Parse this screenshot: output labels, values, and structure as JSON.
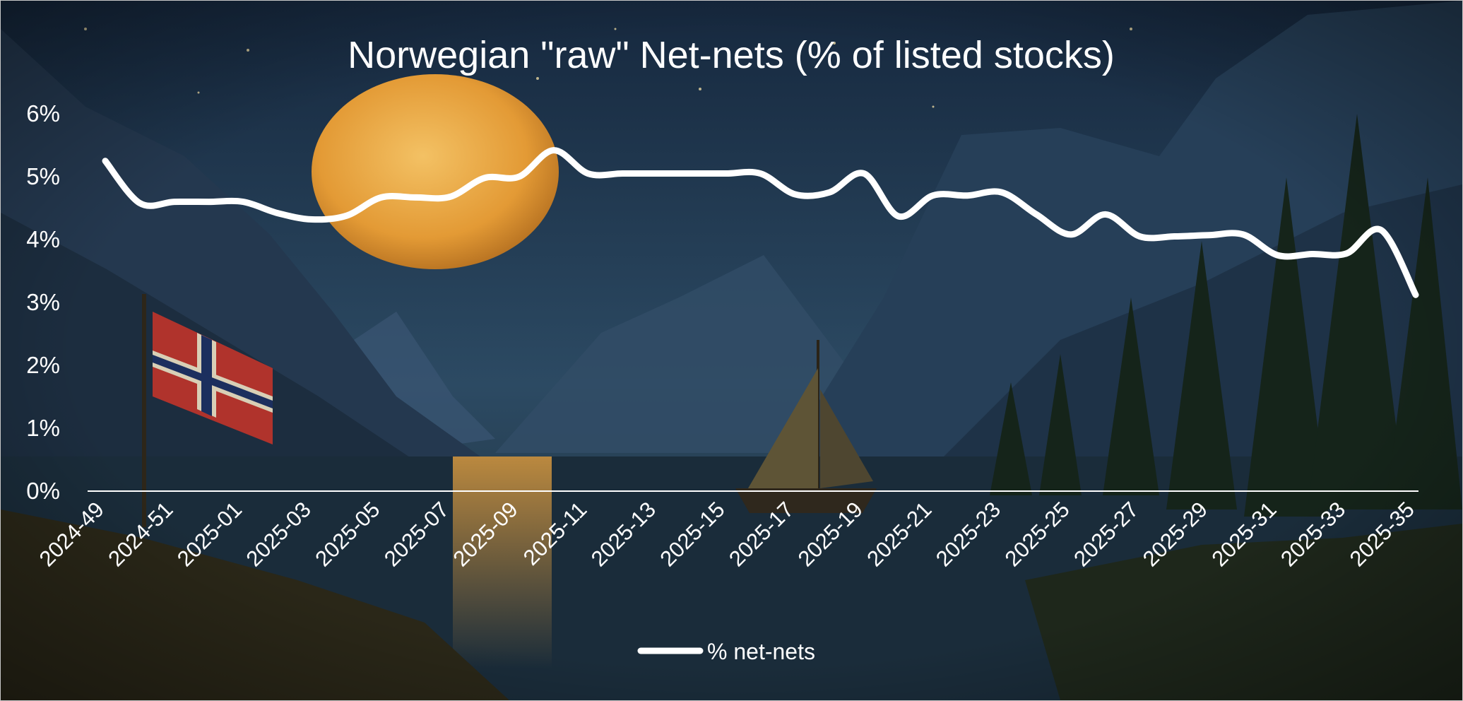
{
  "colors": {
    "line": "#ffffff",
    "sky_top": "#16283e",
    "sky_mid": "#2c4a63",
    "moon": "#e7a83f",
    "water": "#1a2c3a",
    "forest": "#142218",
    "flag_red": "#b0332c",
    "flag_cross": "#1c2f5e"
  },
  "chart_data": {
    "type": "line",
    "title": "Norwegian \"raw\" Net-nets (% of listed stocks)",
    "xlabel": "",
    "ylabel": "",
    "ylim": [
      0,
      6
    ],
    "y_ticks": [
      0,
      1,
      2,
      3,
      4,
      5,
      6
    ],
    "y_tick_labels": [
      "0%",
      "1%",
      "2%",
      "3%",
      "4%",
      "5%",
      "6%"
    ],
    "x_tick_labels": [
      "2024-49",
      "2024-51",
      "2025-01",
      "2025-03",
      "2025-05",
      "2025-07",
      "2025-09",
      "2025-11",
      "2025-13",
      "2025-15",
      "2025-17",
      "2025-19",
      "2025-21",
      "2025-23",
      "2025-25",
      "2025-27",
      "2025-29",
      "2025-31",
      "2025-33",
      "2025-35"
    ],
    "grid": false,
    "legend_position": "bottom",
    "series": [
      {
        "name": "% net-nets",
        "x": [
          "2024-49",
          "2024-50",
          "2024-51",
          "2024-52",
          "2025-01",
          "2025-02",
          "2025-03",
          "2025-04",
          "2025-05",
          "2025-06",
          "2025-07",
          "2025-08",
          "2025-09",
          "2025-10",
          "2025-11",
          "2025-12",
          "2025-13",
          "2025-14",
          "2025-15",
          "2025-16",
          "2025-17",
          "2025-18",
          "2025-19",
          "2025-20",
          "2025-21",
          "2025-22",
          "2025-23",
          "2025-24",
          "2025-25",
          "2025-26",
          "2025-27",
          "2025-28",
          "2025-29",
          "2025-30",
          "2025-31",
          "2025-32",
          "2025-33",
          "2025-34",
          "2025-35"
        ],
        "values": [
          5.25,
          4.58,
          4.6,
          4.6,
          4.6,
          4.42,
          4.32,
          4.38,
          4.67,
          4.67,
          4.68,
          4.98,
          5.0,
          5.42,
          5.05,
          5.05,
          5.05,
          5.05,
          5.05,
          5.05,
          4.72,
          4.75,
          5.05,
          4.37,
          4.7,
          4.7,
          4.75,
          4.4,
          4.08,
          4.4,
          4.05,
          4.05,
          4.07,
          4.08,
          3.75,
          3.77,
          3.78,
          4.15,
          3.12
        ]
      }
    ]
  }
}
